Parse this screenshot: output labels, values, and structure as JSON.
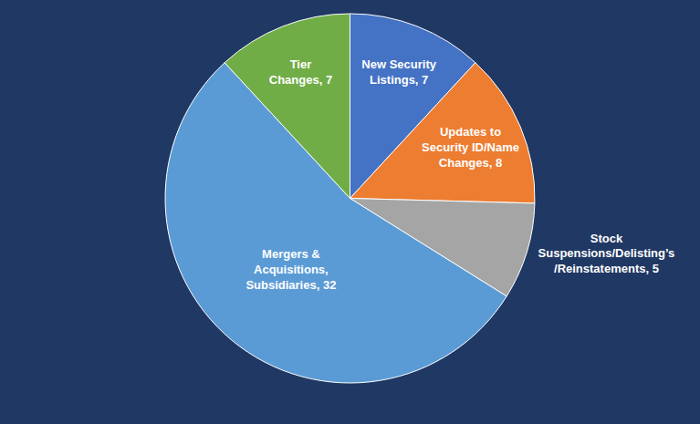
{
  "chart_data": {
    "type": "pie",
    "categories": [
      "New Security Listings",
      "Updates to Security ID/Name Changes",
      "Stock Suspensions/Delisting’s/Reinstatements",
      "Mergers & Acquisitions, Subsidiaries",
      "Tier Changes"
    ],
    "values": [
      7,
      8,
      5,
      32,
      7
    ],
    "value_labels": [
      "New Security\nListings, 7",
      "Updates to\nSecurity ID/Name\nChanges, 8",
      "Stock\nSuspensions/Delisting’s\n/Reinstatements, 5",
      "Mergers &\nAcquisitions,\nSubsidiaries, 32",
      "Tier\nChanges, 7"
    ],
    "colors": [
      "#4472c4",
      "#ed7d31",
      "#a5a5a5",
      "#5b9bd5",
      "#70ad47"
    ],
    "data_labels": true
  }
}
